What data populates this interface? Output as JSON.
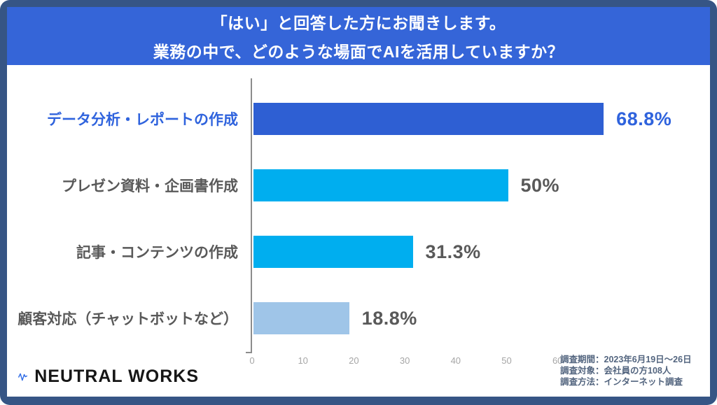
{
  "header": {
    "line1": "「はい」と回答した方にお聞きします。",
    "line2": "業務の中で、どのような場面でAIを活用していますか？"
  },
  "chart_data": {
    "type": "bar",
    "orientation": "horizontal",
    "title": "「はい」と回答した方にお聞きします。業務の中で、どのような場面でAIを活用していますか？",
    "categories": [
      "データ分析・レポートの作成",
      "プレゼン資料・企画書作成",
      "記事・コンテンツの作成",
      "顧客対応（チャットボットなど）"
    ],
    "values": [
      68.8,
      50,
      31.3,
      18.8
    ],
    "value_labels": [
      "68.8%",
      "50%",
      "31.3%",
      "18.8%"
    ],
    "bar_colors": [
      "#2E5FD3",
      "#00AEEF",
      "#00AEEF",
      "#9FC5E8"
    ],
    "label_colors": [
      "#2F63DD",
      "#595959",
      "#595959",
      "#595959"
    ],
    "xlabel": "",
    "ylabel": "",
    "xlim": [
      0,
      60
    ],
    "x_ticks": [
      0,
      10,
      20,
      30,
      40,
      50,
      60
    ],
    "grid": false,
    "legend": false
  },
  "footer": {
    "logo_text": "NEUTRAL WORKS",
    "survey_notes": [
      "調査期間：2023年6月19日～26日",
      "調査対象：会社員の方108人",
      "調査方法：インターネット調査"
    ]
  },
  "colors": {
    "frame": "#365585",
    "header_bg": "#3565D8",
    "header_text": "#ffffff",
    "accent_blue": "#2E5FD3",
    "accent_cyan": "#00AEEF",
    "accent_lightblue": "#9FC5E8",
    "gray_text": "#595959",
    "axis": "#8C8C8C",
    "tick_text": "#A6A6A6"
  }
}
